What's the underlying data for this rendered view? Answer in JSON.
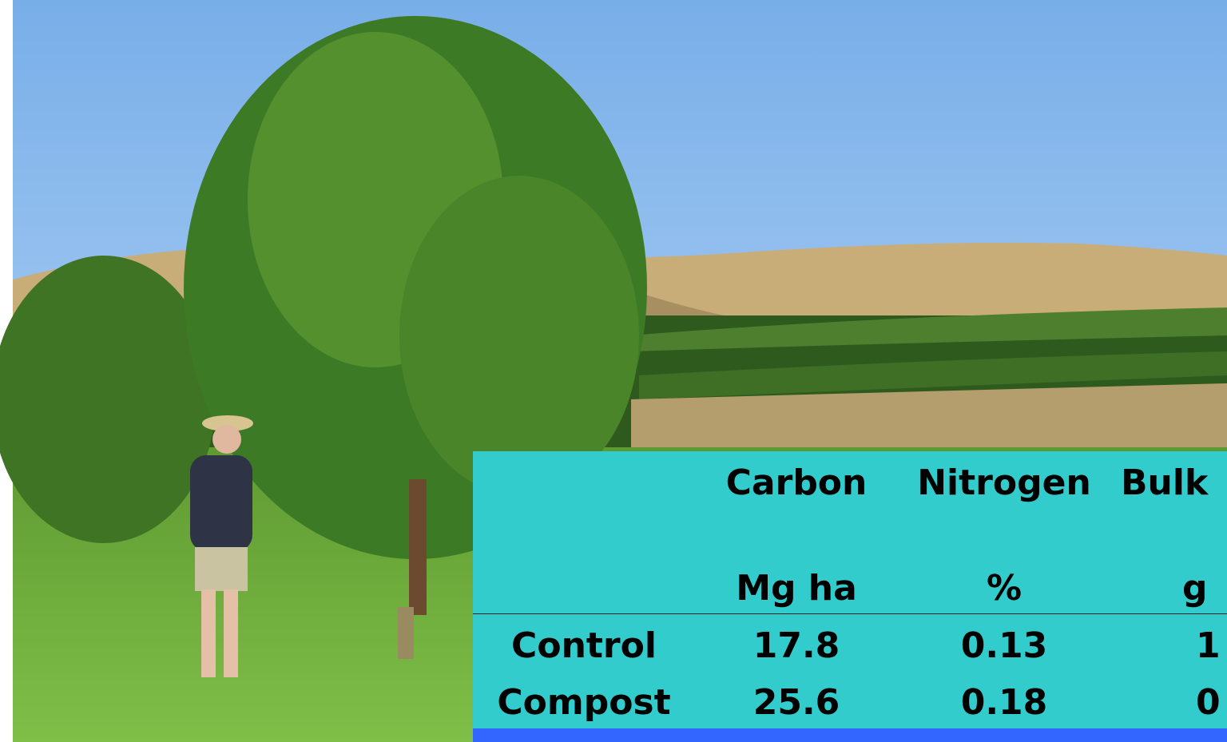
{
  "table": {
    "columns": [
      {
        "name": "Carbon",
        "unit": "Mg ha"
      },
      {
        "name": "Nitrogen",
        "unit": "%"
      },
      {
        "name": "Bulk",
        "unit": "g"
      }
    ],
    "rows": [
      {
        "label": "Control",
        "values": [
          "17.8",
          "0.13",
          "1"
        ]
      },
      {
        "label": "Compost",
        "values": [
          "25.6",
          "0.18",
          "0"
        ]
      }
    ]
  }
}
